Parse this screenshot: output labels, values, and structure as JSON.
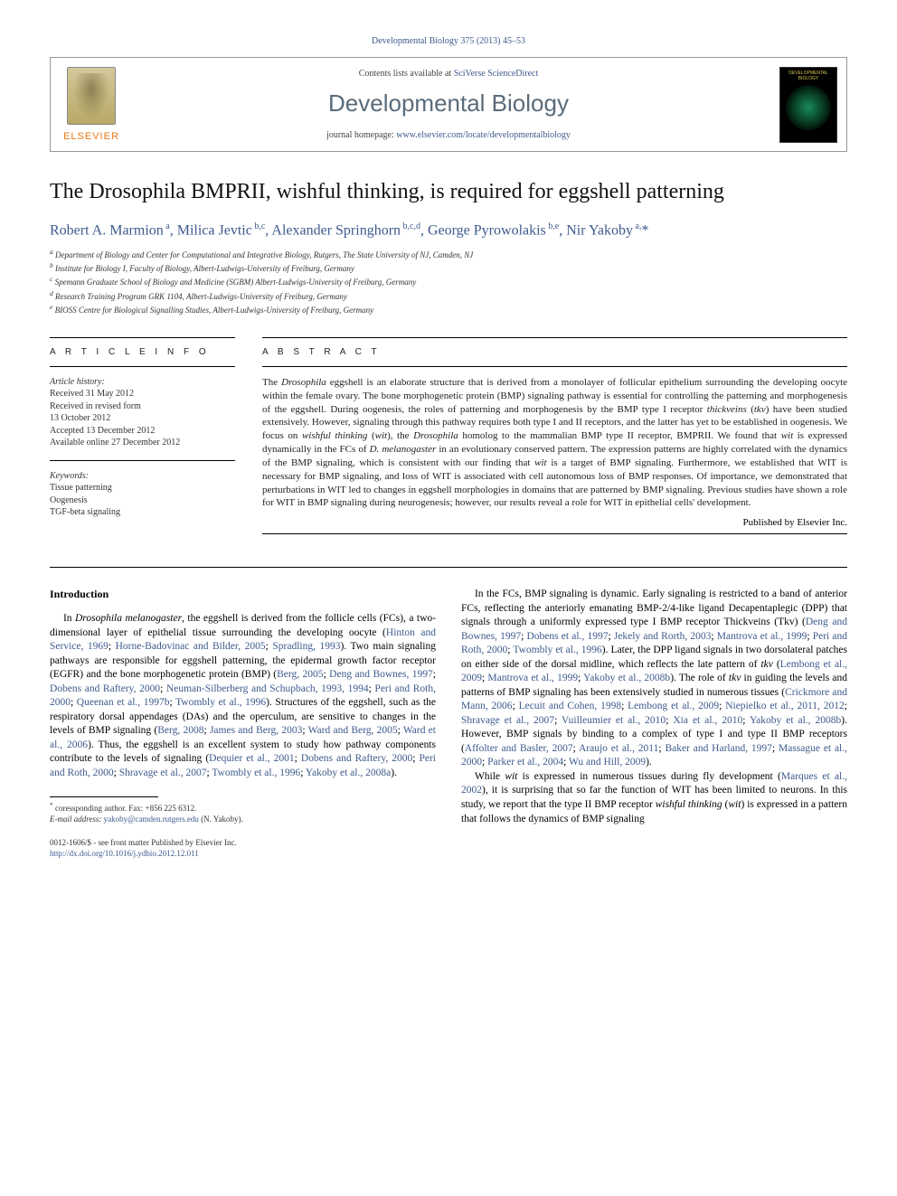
{
  "running_head": "Developmental Biology 375 (2013) 45–53",
  "header": {
    "contents_prefix": "Contents lists available at ",
    "contents_link": "SciVerse ScienceDirect",
    "journal_name": "Developmental Biology",
    "homepage_prefix": "journal homepage: ",
    "homepage_link": "www.elsevier.com/locate/developmentalbiology",
    "elsevier": "ELSEVIER",
    "cover_title": "DEVELOPMENTAL BIOLOGY"
  },
  "title": "The Drosophila BMPRII, wishful thinking, is required for eggshell patterning",
  "authors_html": "Robert A. Marmion <sup>a</sup>, Milica Jevtic <sup>b,c</sup>, Alexander Springhorn <sup>b,c,d</sup>, George Pyrowolakis <sup>b,e</sup>, Nir Yakoby <sup>a,</sup>",
  "affiliations": [
    "a Department of Biology and Center for Computational and Integrative Biology, Rutgers, The State University of NJ, Camden, NJ",
    "b Institute for Biology I, Faculty of Biology, Albert-Ludwigs-University of Freiburg, Germany",
    "c Spemann Graduate School of Biology and Medicine (SGBM) Albert-Ludwigs-University of Freiburg, Germany",
    "d Research Training Program GRK 1104, Albert-Ludwigs-University of Freiburg, Germany",
    "e BIOSS Centre for Biological Signalling Studies, Albert-Ludwigs-University of Freiburg, Germany"
  ],
  "article_info": {
    "heading": "A R T I C L E  I N F O",
    "history_label": "Article history:",
    "history": [
      "Received 31 May 2012",
      "Received in revised form",
      "13 October 2012",
      "Accepted 13 December 2012",
      "Available online 27 December 2012"
    ],
    "keywords_label": "Keywords:",
    "keywords": [
      "Tissue patterning",
      "Oogenesis",
      "TGF-beta signaling"
    ]
  },
  "abstract": {
    "heading": "A B S T R A C T",
    "publisher": "Published by Elsevier Inc."
  },
  "intro_heading": "Introduction",
  "footnote": {
    "corr": "coressponding author. Fax: +856 225 6312.",
    "email_label": "E-mail address:",
    "email": "yakoby@camden.rutgers.edu",
    "email_who": "(N. Yakoby)."
  },
  "footer": {
    "line1": "0012-1606/$ - see front matter Published by Elsevier Inc.",
    "doi": "http://dx.doi.org/10.1016/j.ydbio.2012.12.011"
  },
  "colors": {
    "link": "#3d5a8c",
    "elsevier_orange": "#e67817",
    "journal_grey": "#5a6b7a"
  }
}
